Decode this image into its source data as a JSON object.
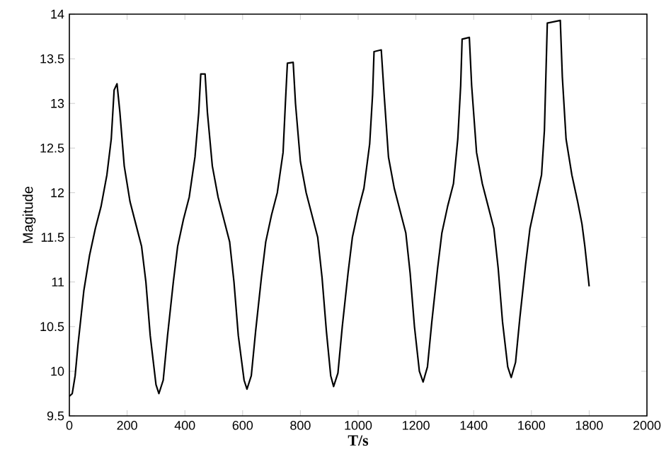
{
  "chart_data": {
    "type": "line",
    "xlabel": "T/s",
    "ylabel": "Magitude",
    "xlim": [
      0,
      2000
    ],
    "ylim": [
      9.5,
      14
    ],
    "xticks": [
      0,
      200,
      400,
      600,
      800,
      1000,
      1200,
      1400,
      1600,
      1800,
      2000
    ],
    "yticks": [
      9.5,
      10,
      10.5,
      11,
      11.5,
      12,
      12.5,
      13,
      13.5,
      14
    ],
    "series": [
      {
        "color": "#000000",
        "x": [
          0,
          10,
          20,
          30,
          50,
          70,
          90,
          110,
          130,
          145,
          155,
          165,
          175,
          190,
          210,
          230,
          250,
          265,
          280,
          300,
          310,
          325,
          340,
          360,
          375,
          395,
          415,
          435,
          448,
          455,
          470,
          478,
          495,
          515,
          535,
          555,
          570,
          585,
          605,
          615,
          630,
          645,
          665,
          680,
          700,
          720,
          740,
          748,
          755,
          775,
          783,
          800,
          820,
          840,
          860,
          875,
          890,
          905,
          915,
          930,
          945,
          965,
          980,
          1000,
          1020,
          1040,
          1050,
          1055,
          1080,
          1090,
          1105,
          1125,
          1145,
          1165,
          1180,
          1195,
          1212,
          1225,
          1240,
          1255,
          1275,
          1290,
          1310,
          1330,
          1345,
          1355,
          1360,
          1385,
          1393,
          1410,
          1430,
          1450,
          1470,
          1485,
          1500,
          1518,
          1530,
          1545,
          1560,
          1580,
          1595,
          1615,
          1635,
          1645,
          1650,
          1655,
          1700,
          1707,
          1720,
          1740,
          1760,
          1775,
          1785,
          1795,
          1800
        ],
        "values": [
          9.72,
          9.75,
          9.95,
          10.3,
          10.9,
          11.3,
          11.6,
          11.85,
          12.2,
          12.6,
          13.15,
          13.22,
          12.9,
          12.3,
          11.9,
          11.65,
          11.4,
          11.0,
          10.4,
          9.85,
          9.75,
          9.9,
          10.4,
          11.0,
          11.4,
          11.7,
          11.95,
          12.4,
          12.9,
          13.33,
          13.33,
          12.9,
          12.3,
          11.95,
          11.7,
          11.45,
          11.0,
          10.4,
          9.9,
          9.8,
          9.95,
          10.45,
          11.05,
          11.45,
          11.75,
          12.0,
          12.45,
          13.0,
          13.45,
          13.46,
          13.0,
          12.35,
          12.0,
          11.75,
          11.5,
          11.05,
          10.45,
          9.95,
          9.83,
          9.98,
          10.5,
          11.1,
          11.5,
          11.8,
          12.05,
          12.55,
          13.1,
          13.58,
          13.6,
          13.1,
          12.4,
          12.05,
          11.8,
          11.55,
          11.1,
          10.5,
          10.0,
          9.88,
          10.05,
          10.55,
          11.15,
          11.55,
          11.85,
          12.1,
          12.6,
          13.2,
          13.72,
          13.74,
          13.2,
          12.45,
          12.1,
          11.85,
          11.6,
          11.15,
          10.55,
          10.05,
          9.93,
          10.1,
          10.6,
          11.2,
          11.6,
          11.9,
          12.2,
          12.7,
          13.3,
          13.9,
          13.93,
          13.3,
          12.6,
          12.2,
          11.9,
          11.65,
          11.4,
          11.1,
          10.95
        ]
      }
    ]
  }
}
